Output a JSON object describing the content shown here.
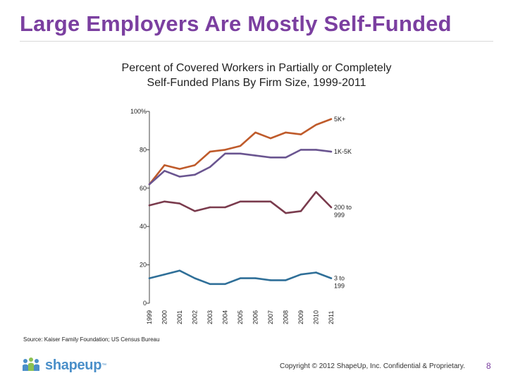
{
  "slide_title": "Large Employers Are Mostly Self-Funded",
  "chart_data": {
    "type": "line",
    "title": "Percent of Covered Workers in Partially or Completely Self-Funded Plans By Firm Size, 1999-2011",
    "title_lines": [
      "Percent of Covered Workers in Partially or Completely",
      "Self-Funded Plans By Firm Size, 1999-2011"
    ],
    "x": [
      "1999",
      "2000",
      "2001",
      "2002",
      "2003",
      "2004",
      "2005",
      "2006",
      "2007",
      "2008",
      "2009",
      "2010",
      "2011"
    ],
    "ylim": [
      0,
      100
    ],
    "yticks": [
      0,
      20,
      40,
      60,
      80,
      100
    ],
    "ytick_labels": [
      "0",
      "20",
      "40",
      "60",
      "80",
      "100%"
    ],
    "xlabel": "",
    "ylabel": "",
    "series": [
      {
        "name": "5K+",
        "label_lines": [
          "5K+"
        ],
        "color": "#bf5b2b",
        "values": [
          62,
          72,
          70,
          72,
          79,
          80,
          82,
          89,
          86,
          89,
          88,
          93,
          96
        ]
      },
      {
        "name": "1K-5K",
        "label_lines": [
          "1K-5K"
        ],
        "color": "#6a5590",
        "values": [
          62,
          69,
          66,
          67,
          71,
          78,
          78,
          77,
          76,
          76,
          80,
          80,
          79
        ]
      },
      {
        "name": "200 to 999",
        "label_lines": [
          "200 to",
          "999"
        ],
        "color": "#7a3b4d",
        "values": [
          51,
          53,
          52,
          48,
          50,
          50,
          53,
          53,
          53,
          47,
          48,
          58,
          50
        ]
      },
      {
        "name": "3 to 199",
        "label_lines": [
          "3 to",
          "199"
        ],
        "color": "#2f6f98",
        "values": [
          13,
          15,
          17,
          13,
          10,
          10,
          13,
          13,
          12,
          12,
          15,
          16,
          13
        ]
      }
    ]
  },
  "source": "Source: Kaiser Family Foundation; US Census Bureau",
  "logo": {
    "text": "shapeup",
    "tm": "™"
  },
  "copyright": "Copyright © 2012 ShapeUp, Inc. Confidential & Proprietary.",
  "page_number": "8"
}
